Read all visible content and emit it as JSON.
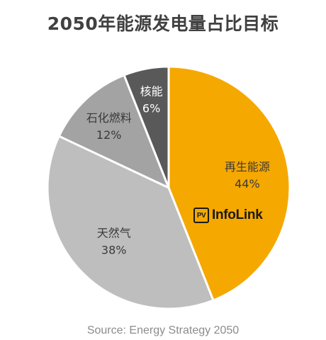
{
  "title": "2050年能源发电量占比目标",
  "source": "Source: Energy Strategy 2050",
  "logo": {
    "box_text": "PV",
    "text": "InfoLink"
  },
  "chart_data": {
    "type": "pie",
    "title": "2050年能源发电量占比目标",
    "start_angle_deg": 0,
    "direction": "clockwise",
    "slices": [
      {
        "label": "再生能源",
        "value": 44,
        "display": "44%",
        "color": "#F5A800",
        "text_color": "#3a3a3a"
      },
      {
        "label": "天然气",
        "value": 38,
        "display": "38%",
        "color": "#BEBEBE",
        "text_color": "#3a3a3a"
      },
      {
        "label": "石化燃料",
        "value": 12,
        "display": "12%",
        "color": "#A3A3A3",
        "text_color": "#3a3a3a"
      },
      {
        "label": "核能",
        "value": 6,
        "display": "6%",
        "color": "#595959",
        "text_color": "#ffffff"
      }
    ]
  }
}
